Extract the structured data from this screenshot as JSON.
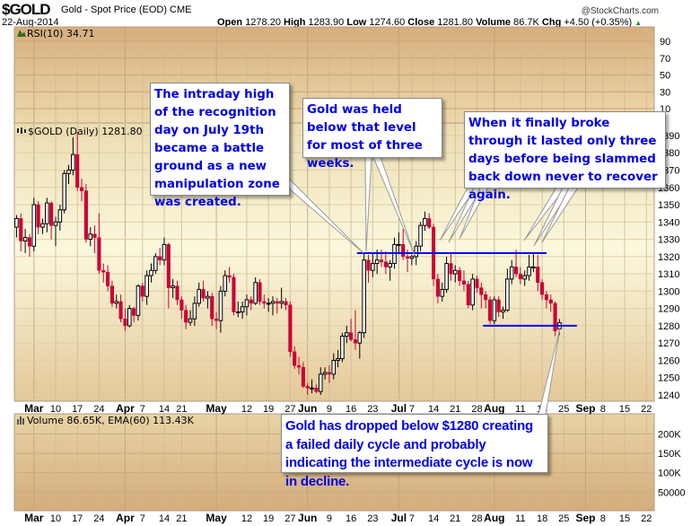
{
  "header": {
    "symbol": "$GOLD",
    "description": "Gold - Spot Price (EOD)",
    "exchange": "CME",
    "date": "22-Aug-2014",
    "credit": "@StockCharts.com",
    "open_label": "Open",
    "open": "1278.20",
    "high_label": "High",
    "high": "1283.90",
    "low_label": "Low",
    "low": "1274.60",
    "close_label": "Close",
    "close": "1281.80",
    "volume_label": "Volume",
    "volume": "86.7K",
    "chg_label": "Chg",
    "chg": "+4.50 (+0.35%)",
    "chg_icon": "triangle-up-icon"
  },
  "colors": {
    "up": "#000000",
    "down": "#cc0033",
    "line": "#0000ff",
    "annotation_text": "#0000e6"
  },
  "annotations": [
    "The intraday high of the recognition day on July 19th became a battle ground as a new manipulation zone was created.",
    "Gold was held below that level for most of three weeks.",
    "When it finally broke through it lasted only three days before being slammed back down never to recover again.",
    "Gold has dropped below $1280 creating a failed daily cycle and probably indicating the intermediate cycle is now in decline."
  ],
  "chart_data": [
    {
      "type": "line",
      "panel": "RSI",
      "label": "RSI(10) 34.71",
      "yticks": [
        90,
        70,
        50,
        30,
        10
      ],
      "ylim": [
        0,
        100
      ],
      "grid": true
    },
    {
      "type": "candlestick",
      "panel": "price",
      "label": "$GOLD (Daily) 1281.80",
      "ylim": [
        1235,
        1395
      ],
      "yticks": [
        1240,
        1250,
        1260,
        1270,
        1280,
        1290,
        1300,
        1310,
        1320,
        1330,
        1340,
        1350,
        1360,
        1370,
        1380,
        1390
      ],
      "grid": true,
      "columns": [
        "date",
        "open",
        "high",
        "low",
        "close"
      ],
      "ohlc": [
        [
          "2014-02-25",
          1337,
          1344,
          1331,
          1342
        ],
        [
          "2014-02-26",
          1342,
          1345,
          1323,
          1329
        ],
        [
          "2014-02-27",
          1329,
          1336,
          1322,
          1331
        ],
        [
          "2014-02-28",
          1331,
          1333,
          1320,
          1326
        ],
        [
          "2014-03-03",
          1326,
          1354,
          1323,
          1350
        ],
        [
          "2014-03-04",
          1350,
          1352,
          1333,
          1337
        ],
        [
          "2014-03-05",
          1337,
          1342,
          1333,
          1339
        ],
        [
          "2014-03-06",
          1339,
          1354,
          1334,
          1351
        ],
        [
          "2014-03-07",
          1351,
          1352,
          1330,
          1338
        ],
        [
          "2014-03-10",
          1338,
          1343,
          1326,
          1340
        ],
        [
          "2014-03-11",
          1340,
          1350,
          1335,
          1347
        ],
        [
          "2014-03-12",
          1347,
          1370,
          1345,
          1368
        ],
        [
          "2014-03-13",
          1368,
          1373,
          1362,
          1370
        ],
        [
          "2014-03-14",
          1370,
          1389,
          1367,
          1379
        ],
        [
          "2014-03-17",
          1379,
          1392,
          1358,
          1360
        ],
        [
          "2014-03-18",
          1360,
          1365,
          1352,
          1358
        ],
        [
          "2014-03-19",
          1358,
          1362,
          1328,
          1330
        ],
        [
          "2014-03-20",
          1330,
          1337,
          1326,
          1333
        ],
        [
          "2014-03-21",
          1333,
          1338,
          1322,
          1331
        ],
        [
          "2014-03-24",
          1331,
          1345,
          1310,
          1312
        ],
        [
          "2014-03-25",
          1312,
          1316,
          1305,
          1311
        ],
        [
          "2014-03-26",
          1311,
          1315,
          1300,
          1303
        ],
        [
          "2014-03-27",
          1303,
          1306,
          1291,
          1293
        ],
        [
          "2014-03-28",
          1293,
          1298,
          1290,
          1294
        ],
        [
          "2014-03-31",
          1294,
          1298,
          1282,
          1284
        ],
        [
          "2014-04-01",
          1284,
          1290,
          1277,
          1280
        ],
        [
          "2014-04-02",
          1280,
          1292,
          1279,
          1290
        ],
        [
          "2014-04-03",
          1290,
          1291,
          1282,
          1286
        ],
        [
          "2014-04-04",
          1286,
          1304,
          1283,
          1303
        ],
        [
          "2014-04-07",
          1303,
          1305,
          1294,
          1297
        ],
        [
          "2014-04-08",
          1297,
          1312,
          1292,
          1309
        ],
        [
          "2014-04-09",
          1309,
          1316,
          1305,
          1312
        ],
        [
          "2014-04-10",
          1312,
          1322,
          1310,
          1320
        ],
        [
          "2014-04-11",
          1320,
          1325,
          1315,
          1318
        ],
        [
          "2014-04-14",
          1318,
          1331,
          1315,
          1327
        ],
        [
          "2014-04-15",
          1327,
          1328,
          1290,
          1302
        ],
        [
          "2014-04-16",
          1302,
          1307,
          1296,
          1303
        ],
        [
          "2014-04-17",
          1303,
          1306,
          1292,
          1295
        ],
        [
          "2014-04-21",
          1295,
          1297,
          1284,
          1289
        ],
        [
          "2014-04-22",
          1289,
          1292,
          1278,
          1282
        ],
        [
          "2014-04-23",
          1282,
          1289,
          1280,
          1284
        ],
        [
          "2014-04-24",
          1284,
          1297,
          1280,
          1293
        ],
        [
          "2014-04-25",
          1293,
          1305,
          1291,
          1301
        ],
        [
          "2014-04-28",
          1301,
          1306,
          1294,
          1296
        ],
        [
          "2014-04-29",
          1296,
          1300,
          1290,
          1297
        ],
        [
          "2014-04-30",
          1297,
          1299,
          1280,
          1284
        ],
        [
          "2014-05-01",
          1284,
          1288,
          1278,
          1283
        ],
        [
          "2014-05-02",
          1283,
          1303,
          1276,
          1300
        ],
        [
          "2014-05-05",
          1300,
          1312,
          1297,
          1309
        ],
        [
          "2014-05-06",
          1309,
          1314,
          1305,
          1308
        ],
        [
          "2014-05-07",
          1308,
          1310,
          1286,
          1288
        ],
        [
          "2014-05-08",
          1288,
          1294,
          1285,
          1288
        ],
        [
          "2014-05-09",
          1288,
          1294,
          1284,
          1291
        ],
        [
          "2014-05-12",
          1291,
          1298,
          1286,
          1295
        ],
        [
          "2014-05-13",
          1295,
          1297,
          1289,
          1293
        ],
        [
          "2014-05-14",
          1293,
          1308,
          1292,
          1305
        ],
        [
          "2014-05-15",
          1305,
          1307,
          1292,
          1294
        ],
        [
          "2014-05-16",
          1294,
          1298,
          1290,
          1293
        ],
        [
          "2014-05-19",
          1293,
          1296,
          1288,
          1293
        ],
        [
          "2014-05-20",
          1293,
          1297,
          1286,
          1294
        ],
        [
          "2014-05-21",
          1294,
          1296,
          1287,
          1293
        ],
        [
          "2014-05-22",
          1293,
          1302,
          1290,
          1294
        ],
        [
          "2014-05-23",
          1294,
          1296,
          1289,
          1292
        ],
        [
          "2014-05-27",
          1292,
          1294,
          1262,
          1265
        ],
        [
          "2014-05-28",
          1265,
          1268,
          1255,
          1257
        ],
        [
          "2014-05-29",
          1257,
          1262,
          1252,
          1256
        ],
        [
          "2014-05-30",
          1256,
          1259,
          1244,
          1245
        ],
        [
          "2014-06-02",
          1245,
          1247,
          1240,
          1244
        ],
        [
          "2014-06-03",
          1244,
          1249,
          1241,
          1244
        ],
        [
          "2014-06-04",
          1244,
          1246,
          1241,
          1242
        ],
        [
          "2014-06-05",
          1242,
          1256,
          1240,
          1252
        ],
        [
          "2014-06-06",
          1252,
          1256,
          1249,
          1253
        ],
        [
          "2014-06-09",
          1253,
          1257,
          1247,
          1252
        ],
        [
          "2014-06-10",
          1252,
          1264,
          1249,
          1260
        ],
        [
          "2014-06-11",
          1260,
          1266,
          1256,
          1261
        ],
        [
          "2014-06-12",
          1261,
          1276,
          1259,
          1274
        ],
        [
          "2014-06-13",
          1274,
          1280,
          1270,
          1276
        ],
        [
          "2014-06-16",
          1276,
          1284,
          1271,
          1272
        ],
        [
          "2014-06-17",
          1272,
          1289,
          1266,
          1270
        ],
        [
          "2014-06-18",
          1270,
          1277,
          1261,
          1276
        ],
        [
          "2014-06-19",
          1276,
          1322,
          1273,
          1318
        ],
        [
          "2014-06-20",
          1318,
          1321,
          1305,
          1312
        ],
        [
          "2014-06-23",
          1312,
          1322,
          1308,
          1316
        ],
        [
          "2014-06-24",
          1316,
          1324,
          1310,
          1318
        ],
        [
          "2014-06-25",
          1318,
          1324,
          1314,
          1317
        ],
        [
          "2014-06-26",
          1317,
          1323,
          1310,
          1314
        ],
        [
          "2014-06-27",
          1314,
          1318,
          1306,
          1316
        ],
        [
          "2014-06-30",
          1316,
          1331,
          1313,
          1327
        ],
        [
          "2014-07-01",
          1327,
          1334,
          1322,
          1327
        ],
        [
          "2014-07-02",
          1327,
          1336,
          1318,
          1320
        ],
        [
          "2014-07-03",
          1320,
          1324,
          1311,
          1319
        ],
        [
          "2014-07-07",
          1319,
          1321,
          1315,
          1320
        ],
        [
          "2014-07-08",
          1320,
          1329,
          1315,
          1326
        ],
        [
          "2014-07-09",
          1326,
          1340,
          1323,
          1338
        ],
        [
          "2014-07-10",
          1338,
          1346,
          1335,
          1342
        ],
        [
          "2014-07-11",
          1342,
          1345,
          1336,
          1337
        ],
        [
          "2014-07-14",
          1337,
          1339,
          1303,
          1307
        ],
        [
          "2014-07-15",
          1307,
          1310,
          1293,
          1297
        ],
        [
          "2014-07-16",
          1297,
          1305,
          1294,
          1301
        ],
        [
          "2014-07-17",
          1301,
          1320,
          1299,
          1316
        ],
        [
          "2014-07-18",
          1316,
          1322,
          1306,
          1310
        ],
        [
          "2014-07-21",
          1310,
          1315,
          1305,
          1312
        ],
        [
          "2014-07-22",
          1312,
          1314,
          1303,
          1306
        ],
        [
          "2014-07-23",
          1306,
          1312,
          1300,
          1304
        ],
        [
          "2014-07-24",
          1304,
          1306,
          1290,
          1292
        ],
        [
          "2014-07-25",
          1292,
          1310,
          1289,
          1307
        ],
        [
          "2014-07-28",
          1307,
          1309,
          1299,
          1302
        ],
        [
          "2014-07-29",
          1302,
          1305,
          1290,
          1298
        ],
        [
          "2014-07-30",
          1298,
          1300,
          1290,
          1295
        ],
        [
          "2014-07-31",
          1295,
          1297,
          1281,
          1283
        ],
        [
          "2014-08-01",
          1283,
          1297,
          1281,
          1295
        ],
        [
          "2014-08-04",
          1295,
          1297,
          1285,
          1288
        ],
        [
          "2014-08-05",
          1288,
          1291,
          1284,
          1289
        ],
        [
          "2014-08-06",
          1289,
          1313,
          1288,
          1307
        ],
        [
          "2014-08-07",
          1307,
          1318,
          1304,
          1314
        ],
        [
          "2014-08-08",
          1314,
          1324,
          1308,
          1310
        ],
        [
          "2014-08-11",
          1310,
          1314,
          1304,
          1307
        ],
        [
          "2014-08-12",
          1307,
          1312,
          1303,
          1309
        ],
        [
          "2014-08-13",
          1309,
          1321,
          1306,
          1314
        ],
        [
          "2014-08-14",
          1314,
          1322,
          1311,
          1314
        ],
        [
          "2014-08-15",
          1314,
          1321,
          1300,
          1305
        ],
        [
          "2014-08-18",
          1305,
          1307,
          1295,
          1298
        ],
        [
          "2014-08-19",
          1298,
          1300,
          1290,
          1295
        ],
        [
          "2014-08-20",
          1295,
          1298,
          1288,
          1293
        ],
        [
          "2014-08-21",
          1293,
          1294,
          1274,
          1277
        ],
        [
          "2014-08-22",
          1278.2,
          1283.9,
          1274.6,
          1281.8
        ]
      ],
      "horizontal_lines": [
        {
          "price": 1322,
          "from": "2014-06-18",
          "to": "2014-08-19"
        },
        {
          "price": 1280,
          "from": "2014-07-30",
          "to": "2014-08-28"
        }
      ]
    },
    {
      "type": "bar",
      "panel": "volume",
      "label": "Volume 86.65K, EMA(60) 113.43K",
      "yticks": [
        {
          "v": 200000,
          "label": "200K"
        },
        {
          "v": 150000,
          "label": "150K"
        },
        {
          "v": 100000,
          "label": "100K"
        },
        {
          "v": 50000,
          "label": "50000"
        }
      ],
      "grid": true
    }
  ],
  "xticks": [
    {
      "date": "2014-03-03",
      "label": "Mar",
      "month": true
    },
    {
      "date": "2014-03-10",
      "label": "10"
    },
    {
      "date": "2014-03-17",
      "label": "17"
    },
    {
      "date": "2014-03-24",
      "label": "24"
    },
    {
      "date": "2014-04-01",
      "label": "Apr",
      "month": true
    },
    {
      "date": "2014-04-07",
      "label": "7"
    },
    {
      "date": "2014-04-14",
      "label": "14"
    },
    {
      "date": "2014-04-21",
      "label": "21"
    },
    {
      "date": "2014-05-01",
      "label": "May",
      "month": true
    },
    {
      "date": "2014-05-12",
      "label": "12"
    },
    {
      "date": "2014-05-19",
      "label": "19"
    },
    {
      "date": "2014-05-27",
      "label": "27"
    },
    {
      "date": "2014-06-02",
      "label": "Jun",
      "month": true
    },
    {
      "date": "2014-06-09",
      "label": "9"
    },
    {
      "date": "2014-06-16",
      "label": "16"
    },
    {
      "date": "2014-06-23",
      "label": "23"
    },
    {
      "date": "2014-07-01",
      "label": "Jul",
      "month": true
    },
    {
      "date": "2014-07-07",
      "label": "7"
    },
    {
      "date": "2014-07-14",
      "label": "14"
    },
    {
      "date": "2014-07-21",
      "label": "21"
    },
    {
      "date": "2014-07-28",
      "label": "28"
    },
    {
      "date": "2014-08-01",
      "label": "Aug",
      "month": true
    },
    {
      "date": "2014-08-11",
      "label": "11"
    },
    {
      "date": "2014-08-18",
      "label": "18"
    },
    {
      "date": "2014-08-25",
      "label": "25"
    },
    {
      "date": "2014-09-02",
      "label": "Sep",
      "month": true
    },
    {
      "date": "2014-09-08",
      "label": "8"
    },
    {
      "date": "2014-09-15",
      "label": "15"
    },
    {
      "date": "2014-09-22",
      "label": "22"
    }
  ]
}
